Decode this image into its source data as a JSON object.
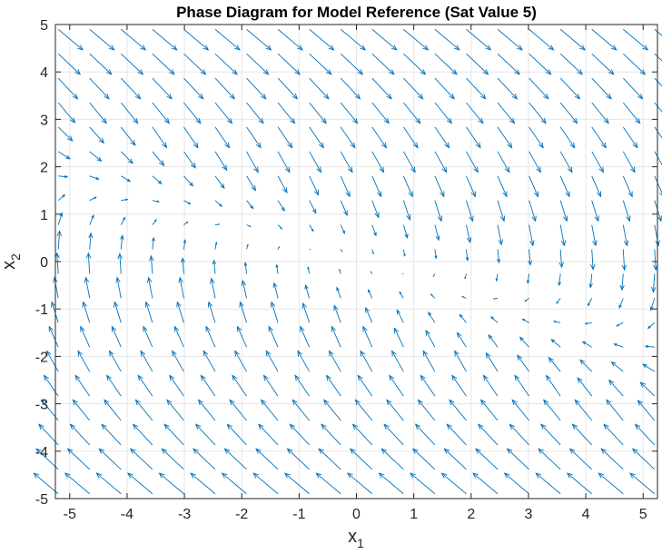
{
  "chart_data": {
    "type": "quiver",
    "title": "Phase Diagram for Model Reference (Sat Value 5)",
    "xlabel": "x",
    "xlabel_subscript": "1",
    "ylabel": "x",
    "ylabel_subscript": "2",
    "xlim": [
      -5.25,
      5.25
    ],
    "ylim": [
      -5,
      5
    ],
    "xticks": [
      -5,
      -4,
      -3,
      -2,
      -1,
      0,
      1,
      2,
      3,
      4,
      5
    ],
    "yticks": [
      -5,
      -4,
      -3,
      -2,
      -1,
      0,
      1,
      2,
      3,
      4,
      5
    ],
    "grid": true,
    "box": true,
    "arrow_color": "#0072BD",
    "field": {
      "expression": "dx1/dt = x2, dx2/dt = -sat(x1 + 3*x2, 5)",
      "x_range": [
        -5.2,
        5.2
      ],
      "y_range": [
        -4.9,
        4.9
      ],
      "nx": 20,
      "ny": 20
    }
  }
}
